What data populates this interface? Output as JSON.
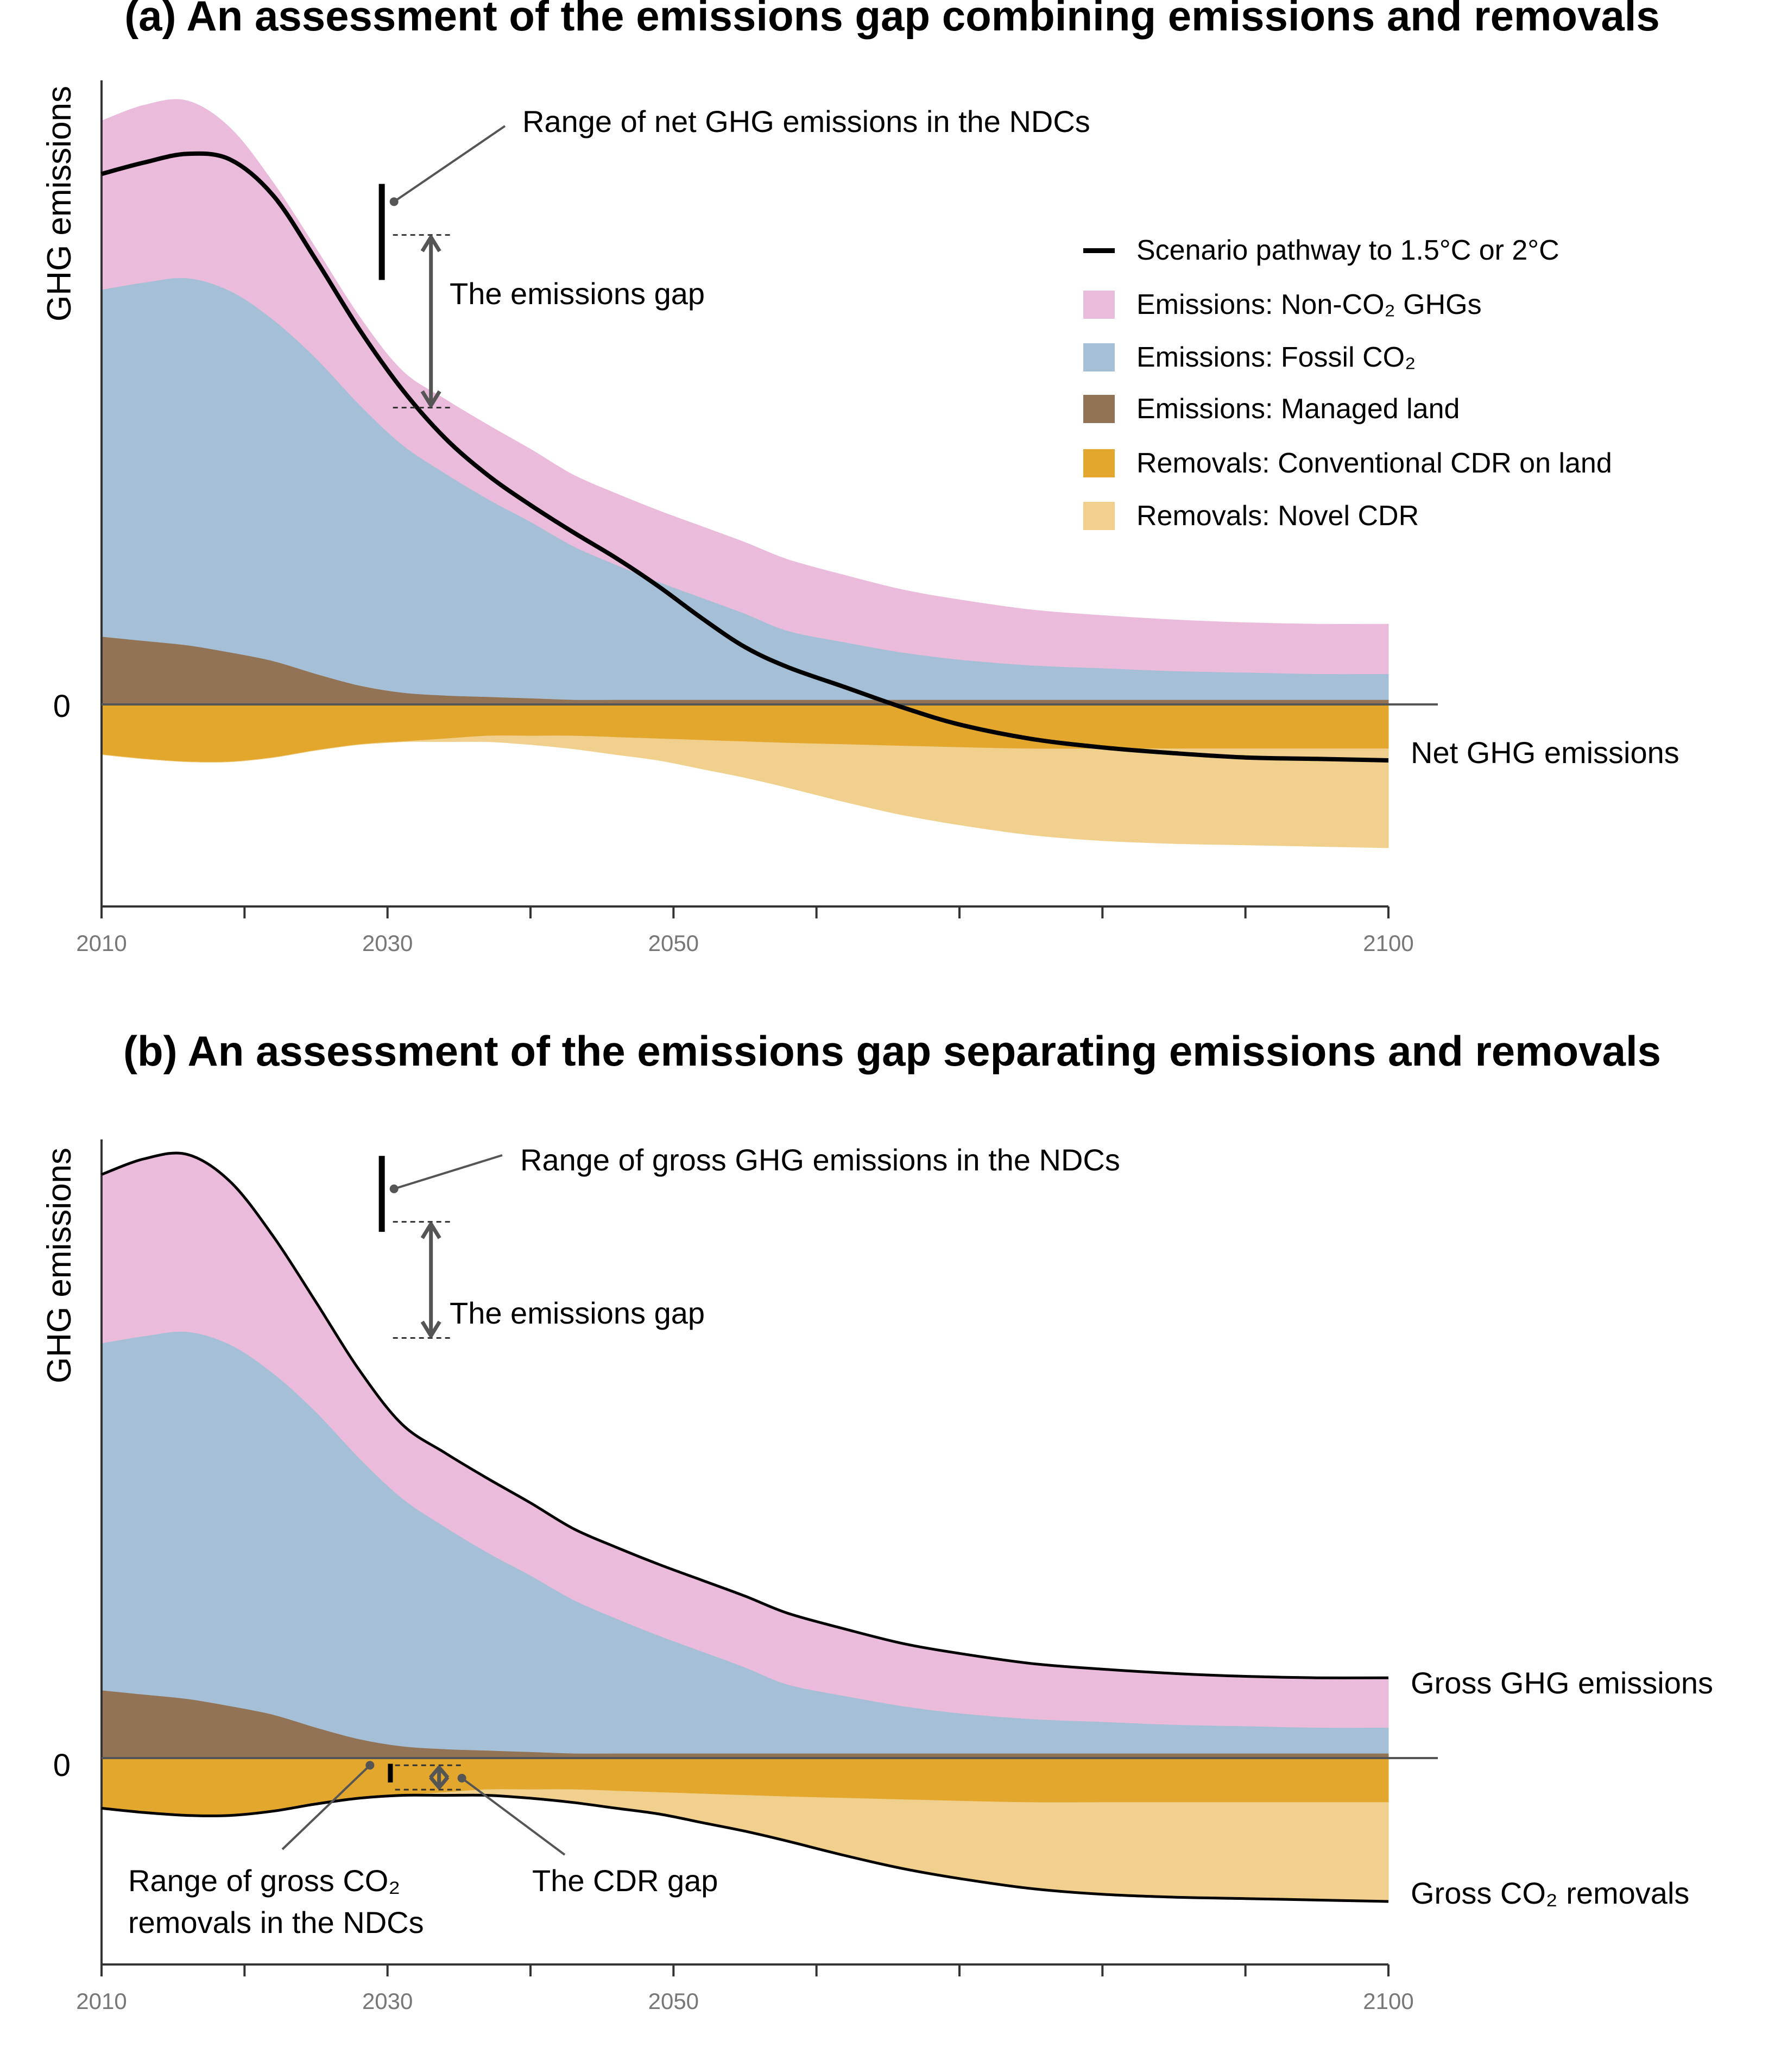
{
  "chart_data": [
    {
      "panel": "a",
      "type": "area",
      "title": "(a) An assessment of the emissions gap combining emissions and removals",
      "ylabel": "GHG emissions",
      "zero_label": "0",
      "x_ticks": [
        2010,
        2030,
        2050,
        2100
      ],
      "minor_ticks": [
        2020,
        2040,
        2060,
        2070,
        2080,
        2090
      ],
      "xlim": [
        2010,
        2100
      ],
      "ylim": [
        -1.45,
        4.45
      ],
      "x": [
        2010,
        2013,
        2016,
        2019,
        2022,
        2025,
        2028,
        2031,
        2034,
        2037,
        2040,
        2043,
        2046,
        2049,
        2052,
        2055,
        2058,
        2062,
        2066,
        2070,
        2075,
        2080,
        2085,
        2090,
        2095,
        2100
      ],
      "series": [
        {
          "name": "Emissions: Managed land",
          "color": "#927355",
          "values": [
            0.47,
            0.44,
            0.41,
            0.36,
            0.3,
            0.21,
            0.13,
            0.08,
            0.06,
            0.05,
            0.04,
            0.03,
            0.03,
            0.03,
            0.03,
            0.03,
            0.03,
            0.03,
            0.03,
            0.03,
            0.03,
            0.03,
            0.03,
            0.03,
            0.03,
            0.03
          ]
        },
        {
          "name": "Emissions: Fossil CO₂",
          "color": "#a5c0d6",
          "values": [
            2.42,
            2.5,
            2.56,
            2.52,
            2.38,
            2.2,
            1.96,
            1.73,
            1.55,
            1.38,
            1.23,
            1.07,
            0.94,
            0.82,
            0.71,
            0.6,
            0.48,
            0.4,
            0.33,
            0.28,
            0.24,
            0.22,
            0.2,
            0.19,
            0.18,
            0.18
          ]
        },
        {
          "name": "Emissions: Non-CO₂ GHGs",
          "color": "#eabbdb",
          "values": [
            1.18,
            1.24,
            1.24,
            1.14,
            0.96,
            0.77,
            0.62,
            0.52,
            0.52,
            0.52,
            0.51,
            0.5,
            0.5,
            0.5,
            0.5,
            0.5,
            0.5,
            0.47,
            0.44,
            0.42,
            0.39,
            0.37,
            0.36,
            0.35,
            0.35,
            0.35
          ]
        },
        {
          "name": "Removals: Conventional CDR on land",
          "color": "#e2a72c",
          "values": [
            -0.35,
            -0.38,
            -0.4,
            -0.4,
            -0.37,
            -0.32,
            -0.28,
            -0.26,
            -0.24,
            -0.22,
            -0.22,
            -0.22,
            -0.23,
            -0.24,
            -0.25,
            -0.26,
            -0.27,
            -0.28,
            -0.29,
            -0.3,
            -0.31,
            -0.31,
            -0.31,
            -0.31,
            -0.31,
            -0.31
          ]
        },
        {
          "name": "Removals: Novel CDR",
          "color": "#f0d08c",
          "values": [
            0,
            0,
            0,
            0,
            0,
            0,
            0,
            0,
            -0.02,
            -0.04,
            -0.06,
            -0.09,
            -0.12,
            -0.15,
            -0.2,
            -0.25,
            -0.31,
            -0.4,
            -0.48,
            -0.54,
            -0.6,
            -0.64,
            -0.66,
            -0.67,
            -0.68,
            -0.69
          ]
        }
      ],
      "pathway": {
        "name": "Scenario pathway to 1.5°C or 2°C",
        "values": [
          3.7,
          3.78,
          3.84,
          3.8,
          3.55,
          3.1,
          2.62,
          2.2,
          1.86,
          1.6,
          1.39,
          1.2,
          1.02,
          0.82,
          0.6,
          0.4,
          0.26,
          0.12,
          -0.02,
          -0.14,
          -0.24,
          -0.3,
          -0.34,
          -0.37,
          -0.38,
          -0.39
        ]
      },
      "ndc_range": [
        2.96,
        3.63
      ],
      "ndc_year": 2029.6,
      "annotations": {
        "ndc_label": "Range of net GHG emissions in the NDCs",
        "gap_label": "The emissions gap",
        "end_label": "Net GHG emissions"
      },
      "legend": {
        "placement": "top-right",
        "entries": [
          "Scenario pathway to 1.5°C or 2°C",
          "Emissions: Non-CO₂ GHGs",
          "Emissions: Fossil CO₂",
          "Emissions: Managed land",
          "Removals: Conventional CDR on land",
          "Removals: Novel CDR"
        ]
      }
    },
    {
      "panel": "b",
      "type": "area",
      "title": "(b) An assessment of the emissions gap separating emissions and removals",
      "ylabel": "GHG emissions",
      "zero_label": "0",
      "x_ticks": [
        2010,
        2030,
        2050,
        2100
      ],
      "minor_ticks": [
        2020,
        2040,
        2060,
        2070,
        2080,
        2090
      ],
      "xlim": [
        2010,
        2100
      ],
      "ylim": [
        -1.45,
        4.45
      ],
      "x": [
        2010,
        2013,
        2016,
        2019,
        2022,
        2025,
        2028,
        2031,
        2034,
        2037,
        2040,
        2043,
        2046,
        2049,
        2052,
        2055,
        2058,
        2062,
        2066,
        2070,
        2075,
        2080,
        2085,
        2090,
        2095,
        2100
      ],
      "series": [
        {
          "name": "Emissions: Managed land",
          "color": "#927355",
          "values": [
            0.47,
            0.44,
            0.41,
            0.36,
            0.3,
            0.21,
            0.13,
            0.08,
            0.06,
            0.05,
            0.04,
            0.03,
            0.03,
            0.03,
            0.03,
            0.03,
            0.03,
            0.03,
            0.03,
            0.03,
            0.03,
            0.03,
            0.03,
            0.03,
            0.03,
            0.03
          ]
        },
        {
          "name": "Emissions: Fossil CO₂",
          "color": "#a5c0d6",
          "values": [
            2.42,
            2.5,
            2.56,
            2.52,
            2.38,
            2.2,
            1.96,
            1.73,
            1.55,
            1.38,
            1.23,
            1.07,
            0.94,
            0.82,
            0.71,
            0.6,
            0.48,
            0.4,
            0.33,
            0.28,
            0.24,
            0.22,
            0.2,
            0.19,
            0.18,
            0.18
          ]
        },
        {
          "name": "Emissions: Non-CO₂ GHGs",
          "color": "#eabbdb",
          "values": [
            1.18,
            1.24,
            1.24,
            1.14,
            0.96,
            0.77,
            0.62,
            0.52,
            0.52,
            0.52,
            0.51,
            0.5,
            0.5,
            0.5,
            0.5,
            0.5,
            0.5,
            0.47,
            0.44,
            0.42,
            0.39,
            0.37,
            0.36,
            0.35,
            0.35,
            0.35
          ]
        },
        {
          "name": "Removals: Conventional CDR on land",
          "color": "#e2a72c",
          "values": [
            -0.35,
            -0.38,
            -0.4,
            -0.4,
            -0.37,
            -0.32,
            -0.28,
            -0.26,
            -0.24,
            -0.22,
            -0.22,
            -0.22,
            -0.23,
            -0.24,
            -0.25,
            -0.26,
            -0.27,
            -0.28,
            -0.29,
            -0.3,
            -0.31,
            -0.31,
            -0.31,
            -0.31,
            -0.31,
            -0.31
          ]
        },
        {
          "name": "Removals: Novel CDR",
          "color": "#f0d08c",
          "values": [
            0,
            0,
            0,
            0,
            0,
            0,
            0,
            0,
            -0.02,
            -0.04,
            -0.06,
            -0.09,
            -0.12,
            -0.15,
            -0.2,
            -0.25,
            -0.31,
            -0.4,
            -0.48,
            -0.54,
            -0.6,
            -0.64,
            -0.66,
            -0.67,
            -0.68,
            -0.69
          ]
        }
      ],
      "outlines": [
        "Gross GHG emissions",
        "Gross CO₂ removals"
      ],
      "ndc_range": [
        3.67,
        4.2
      ],
      "ndc_year": 2029.6,
      "cdr_ndc_range": [
        -0.04,
        -0.17
      ],
      "cdr_ndc_year": 2030.2,
      "annotations": {
        "ndc_label": "Range of gross GHG emissions in the NDCs",
        "gap_label": "The emissions gap",
        "cdr_ndc_label_1": "Range of gross CO₂",
        "cdr_ndc_label_2": "removals in the NDCs",
        "cdr_gap_label": "The CDR gap",
        "end_label_top": "Gross GHG emissions",
        "end_label_bottom": "Gross CO₂ removals"
      }
    }
  ]
}
